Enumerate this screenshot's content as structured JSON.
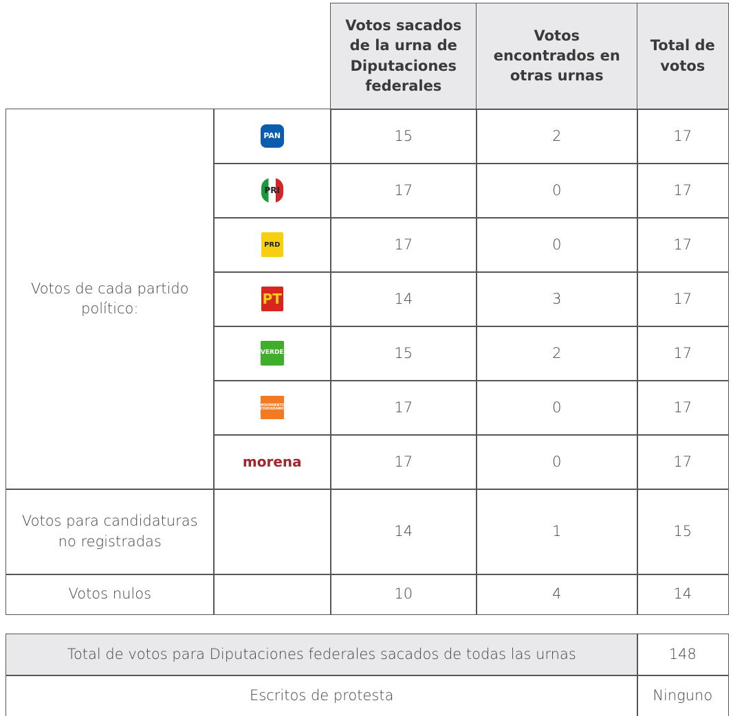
{
  "header": {
    "columns": [
      "Votos sacados de la urna de Diputaciones federales",
      "Votos encontrados en otras urnas",
      "Total de votos"
    ]
  },
  "party_section": {
    "label": "Votos de cada partido político:",
    "parties": [
      {
        "logo": "PAN",
        "values": [
          15,
          2,
          17
        ]
      },
      {
        "logo": "PRI",
        "values": [
          17,
          0,
          17
        ]
      },
      {
        "logo": "PRD",
        "values": [
          17,
          0,
          17
        ]
      },
      {
        "logo": "PT",
        "values": [
          14,
          3,
          17
        ]
      },
      {
        "logo": "VERDE",
        "values": [
          15,
          2,
          17
        ]
      },
      {
        "logo": "MOVIMIENTO CIUDADANO",
        "values": [
          17,
          0,
          17
        ]
      },
      {
        "logo": "morena",
        "values": [
          17,
          0,
          17
        ]
      }
    ]
  },
  "rows": [
    {
      "label": "Votos para candidaturas no registradas",
      "values": [
        14,
        1,
        15
      ]
    },
    {
      "label": "Votos nulos",
      "values": [
        10,
        4,
        14
      ]
    }
  ],
  "summary": [
    {
      "label": "Total de votos para Diputaciones federales sacados de todas las urnas",
      "value": 148
    },
    {
      "label": "Escritos de protesta",
      "value": "Ninguno"
    }
  ]
}
